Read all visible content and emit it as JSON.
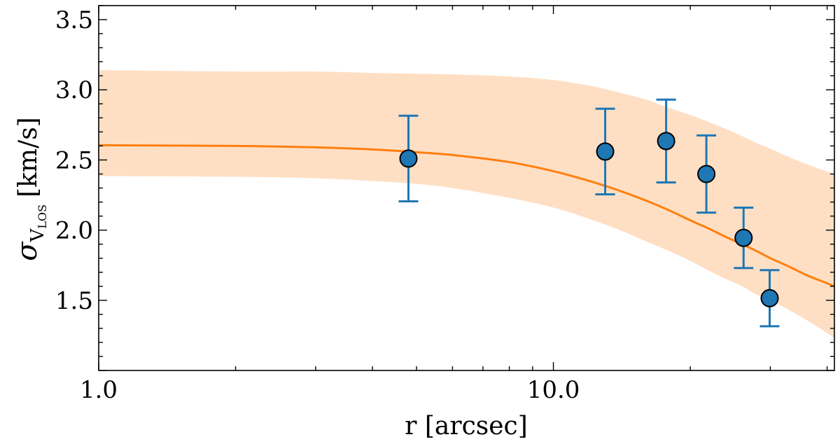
{
  "chart_data": {
    "type": "scatter",
    "title": "",
    "xlabel": "r [arcsec]",
    "ylabel": {
      "symbol": "σ",
      "subscript": "V",
      "subsubscript": "LOS",
      "unit": "[km/s]"
    },
    "xscale": "log",
    "xlim": [
      1.0,
      41.5
    ],
    "ylim": [
      1.0,
      3.6
    ],
    "x_tick_labels": [
      {
        "value": 1.0,
        "label": "1.0"
      },
      {
        "value": 10.0,
        "label": "10.0"
      }
    ],
    "y_tick_labels": [
      {
        "value": 1.5,
        "label": "1.5"
      },
      {
        "value": 2.0,
        "label": "2.0"
      },
      {
        "value": 2.5,
        "label": "2.5"
      },
      {
        "value": 3.0,
        "label": "3.0"
      },
      {
        "value": 3.5,
        "label": "3.5"
      }
    ],
    "grid": false,
    "series": [
      {
        "kind": "errorbar",
        "color": "#1f77b4",
        "points": [
          {
            "x": 4.8,
            "y": 2.51,
            "yerr": 0.305
          },
          {
            "x": 13.0,
            "y": 2.56,
            "yerr": 0.305
          },
          {
            "x": 17.7,
            "y": 2.635,
            "yerr": 0.295
          },
          {
            "x": 21.7,
            "y": 2.4,
            "yerr": 0.275
          },
          {
            "x": 26.2,
            "y": 1.945,
            "yerr": 0.215
          },
          {
            "x": 29.9,
            "y": 1.515,
            "yerr": 0.2
          }
        ]
      },
      {
        "kind": "line",
        "color": "#ff7f0e",
        "x": [
          1.0,
          2.0,
          3.0,
          4.0,
          5.0,
          6.0,
          8.0,
          10.0,
          12.0,
          14.0,
          16.0,
          18.0,
          20.0,
          22.0,
          24.0,
          26.0,
          28.0,
          30.0,
          33.0,
          36.0,
          39.0,
          41.5
        ],
        "y": [
          2.605,
          2.6,
          2.59,
          2.575,
          2.555,
          2.535,
          2.485,
          2.42,
          2.35,
          2.28,
          2.21,
          2.14,
          2.07,
          2.01,
          1.95,
          1.9,
          1.85,
          1.8,
          1.74,
          1.68,
          1.635,
          1.6
        ]
      },
      {
        "kind": "band",
        "color": "#ffdfc4",
        "x": [
          1.0,
          2.0,
          3.0,
          4.0,
          5.0,
          6.0,
          8.0,
          10.0,
          12.0,
          14.0,
          16.0,
          18.0,
          20.0,
          22.0,
          24.0,
          26.0,
          28.0,
          30.0,
          33.0,
          36.0,
          39.0,
          41.5
        ],
        "upper": [
          3.14,
          3.13,
          3.13,
          3.12,
          3.115,
          3.11,
          3.095,
          3.07,
          3.03,
          2.98,
          2.93,
          2.87,
          2.82,
          2.77,
          2.72,
          2.67,
          2.62,
          2.58,
          2.52,
          2.47,
          2.43,
          2.4
        ],
        "lower": [
          2.385,
          2.38,
          2.37,
          2.35,
          2.33,
          2.3,
          2.23,
          2.16,
          2.08,
          2.0,
          1.92,
          1.85,
          1.78,
          1.71,
          1.65,
          1.6,
          1.54,
          1.5,
          1.43,
          1.36,
          1.29,
          1.23
        ]
      }
    ]
  }
}
